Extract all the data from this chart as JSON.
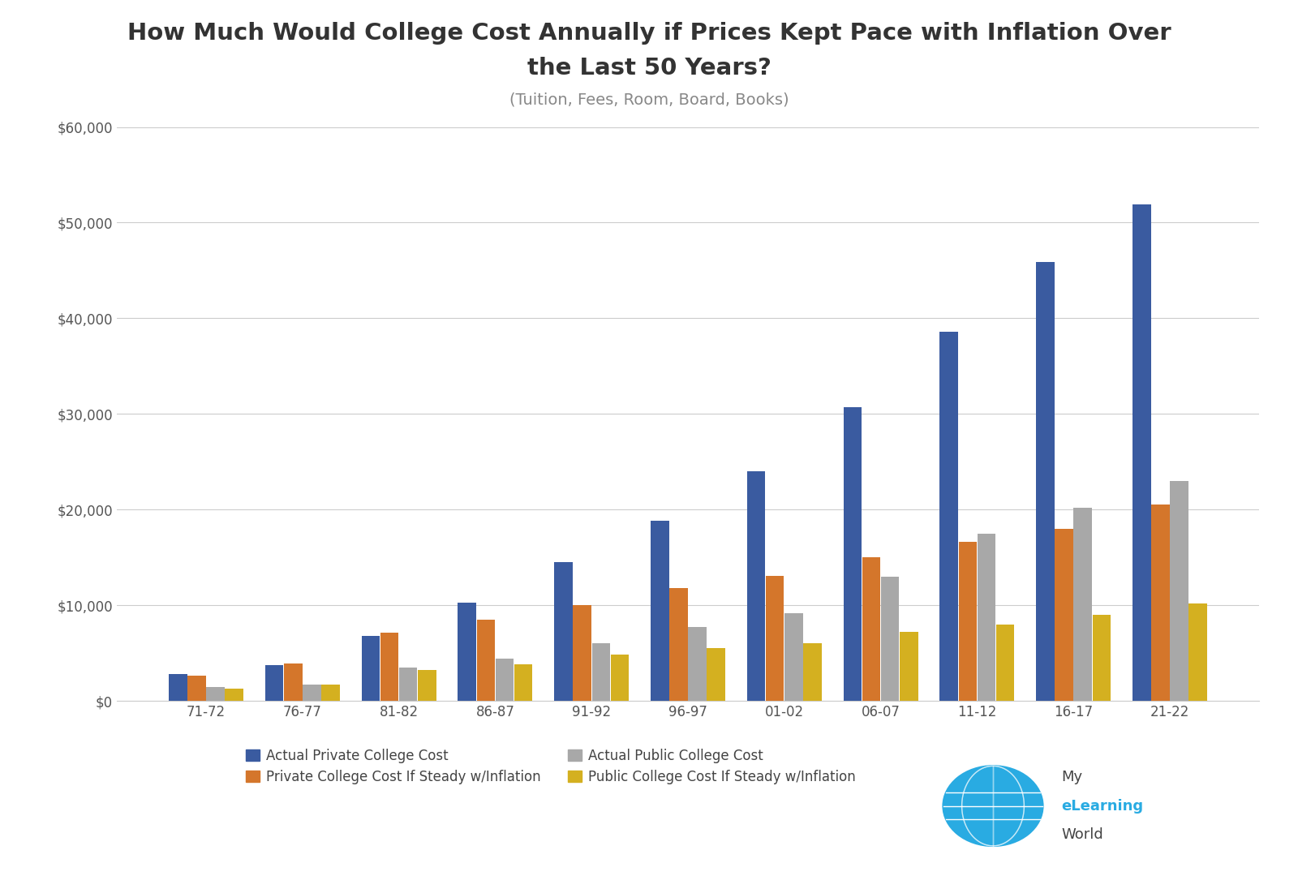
{
  "title_line1": "How Much Would College Cost Annually if Prices Kept Pace with Inflation Over",
  "title_line2": "the Last 50 Years?",
  "subtitle": "(Tuition, Fees, Room, Board, Books)",
  "categories": [
    "71-72",
    "76-77",
    "81-82",
    "86-87",
    "91-92",
    "96-97",
    "01-02",
    "06-07",
    "11-12",
    "16-17",
    "21-22"
  ],
  "actual_private": [
    2800,
    3700,
    6800,
    10300,
    14500,
    18800,
    24000,
    30700,
    38600,
    45900,
    51900
  ],
  "private_inflation": [
    2600,
    3900,
    7100,
    8500,
    10000,
    11800,
    13100,
    15000,
    16600,
    18000,
    20500
  ],
  "actual_public": [
    1400,
    1700,
    3500,
    4400,
    6000,
    7700,
    9200,
    13000,
    17500,
    20200,
    23000
  ],
  "public_inflation": [
    1300,
    1700,
    3200,
    3800,
    4800,
    5500,
    6000,
    7200,
    8000,
    9000,
    10200
  ],
  "color_blue": "#3A5BA0",
  "color_orange": "#D4762B",
  "color_gray": "#A8A8A8",
  "color_yellow": "#D4B020",
  "ylim": [
    0,
    60000
  ],
  "yticks": [
    0,
    10000,
    20000,
    30000,
    40000,
    50000,
    60000
  ],
  "legend_labels": [
    "Actual Private College Cost",
    "Private College Cost If Steady w/Inflation",
    "Actual Public College Cost",
    "Public College Cost If Steady w/Inflation"
  ],
  "background_color": "#FFFFFF",
  "grid_color": "#CCCCCC",
  "title_fontsize": 21,
  "subtitle_fontsize": 14,
  "tick_fontsize": 12,
  "legend_fontsize": 12,
  "bar_width": 0.19,
  "logo_globe_color": "#29ABE2",
  "logo_text_elearning_color": "#29ABE2",
  "logo_text_color": "#555555"
}
